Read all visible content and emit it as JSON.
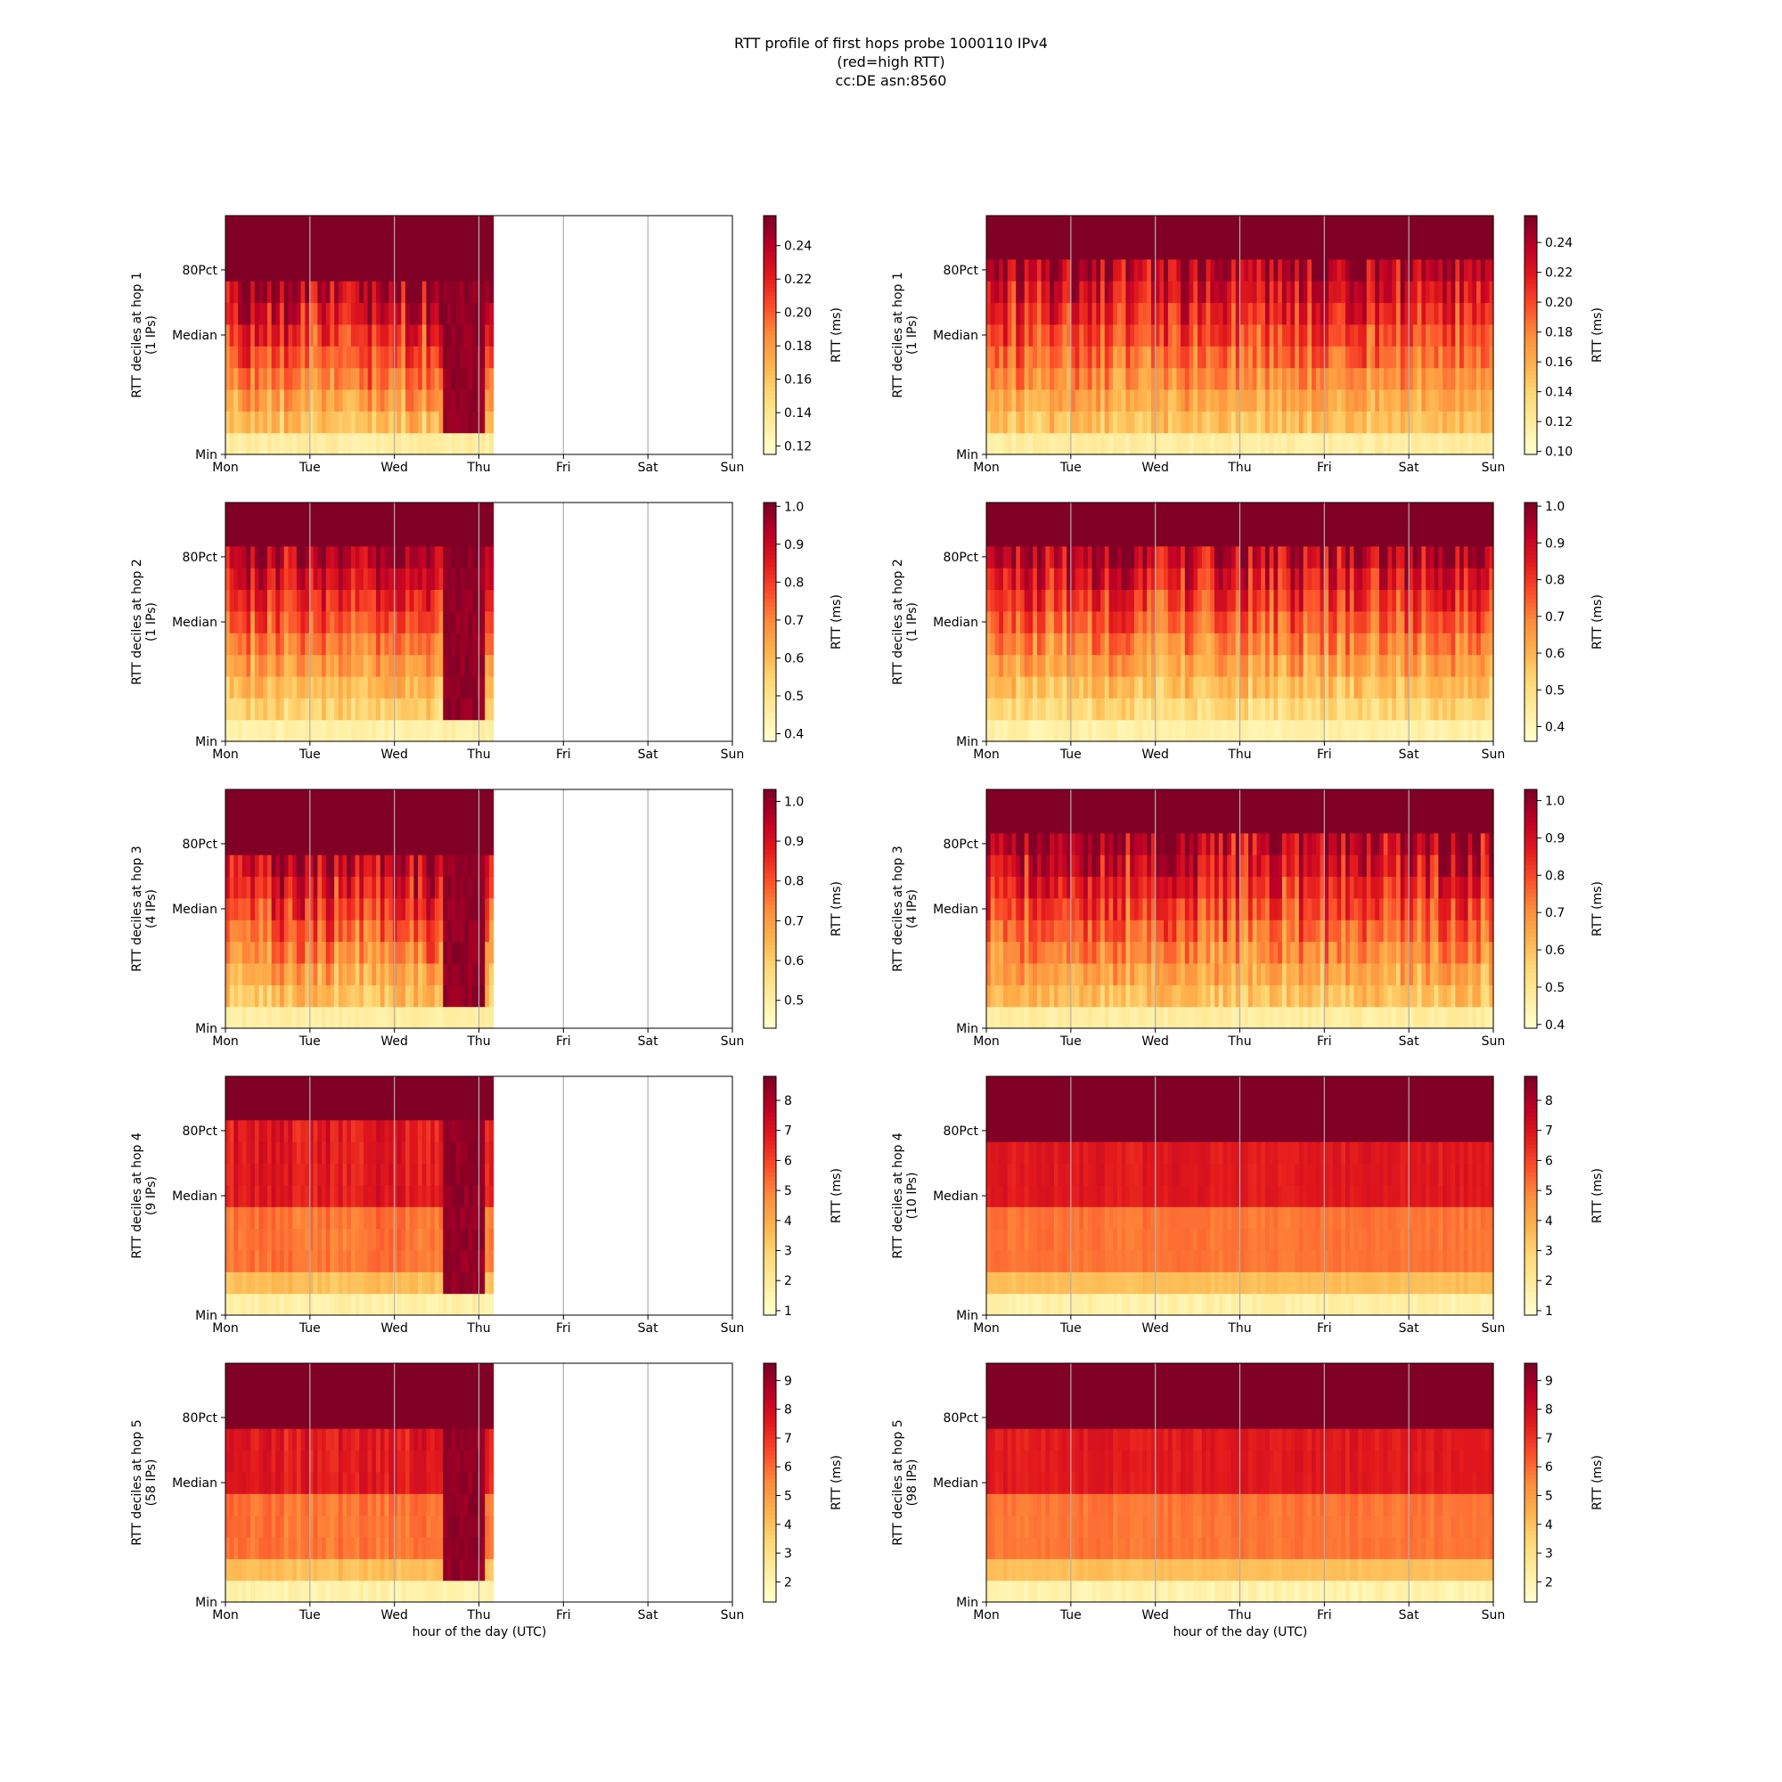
{
  "figure": {
    "title_lines": [
      "RTT profile of first hops probe 1000110 IPv4",
      "(red=high RTT)",
      "cc:DE asn:8560"
    ],
    "xlabel": "hour of the day (UTC)"
  },
  "colors": {
    "colormap": [
      "#ffffcc",
      "#ffeda0",
      "#fed976",
      "#feb24c",
      "#fd8d3c",
      "#fc4e2a",
      "#e31a1c",
      "#bd0026",
      "#800026"
    ],
    "grid": "#b0b0b0",
    "axes": "#000000"
  },
  "chart_data": [
    {
      "type": "heatmap",
      "col": 0,
      "row": 0,
      "ylabel": "RTT deciles at hop 1\n(1 IPs)",
      "xticks": [
        "Mon",
        "Tue",
        "Wed",
        "Thu",
        "Fri",
        "Sat",
        "Sun"
      ],
      "yticks": [
        "Min",
        "Median",
        "80Pct"
      ],
      "colorbar_label": "RTT (ms)",
      "colorbar_ticks": [
        "0.12",
        "0.14",
        "0.16",
        "0.18",
        "0.20",
        "0.22",
        "0.24"
      ],
      "clim": [
        0.115,
        0.258
      ],
      "data_days": 3.17,
      "thu_dip": true,
      "base_level": 0.45,
      "bottom_level": 0.08,
      "top_band_deciles": 3.2,
      "noise": 0.35,
      "seed": 11
    },
    {
      "type": "heatmap",
      "col": 1,
      "row": 0,
      "ylabel": "RTT deciles at hop 1\n(1 IPs)",
      "xticks": [
        "Mon",
        "Tue",
        "Wed",
        "Thu",
        "Fri",
        "Sat",
        "Sun"
      ],
      "yticks": [
        "Min",
        "Median",
        "80Pct"
      ],
      "colorbar_label": "RTT (ms)",
      "colorbar_ticks": [
        "0.10",
        "0.12",
        "0.14",
        "0.16",
        "0.18",
        "0.20",
        "0.22",
        "0.24"
      ],
      "clim": [
        0.098,
        0.258
      ],
      "data_days": 6.0,
      "thu_dip": false,
      "base_level": 0.45,
      "bottom_level": 0.08,
      "top_band_deciles": 2.0,
      "noise": 0.3,
      "seed": 12
    },
    {
      "type": "heatmap",
      "col": 0,
      "row": 1,
      "ylabel": "RTT deciles at hop 2\n(1 IPs)",
      "xticks": [
        "Mon",
        "Tue",
        "Wed",
        "Thu",
        "Fri",
        "Sat",
        "Sun"
      ],
      "yticks": [
        "Min",
        "Median",
        "80Pct"
      ],
      "colorbar_label": "RTT (ms)",
      "colorbar_ticks": [
        "0.4",
        "0.5",
        "0.6",
        "0.7",
        "0.8",
        "0.9",
        "1.0"
      ],
      "clim": [
        0.38,
        1.01
      ],
      "data_days": 3.17,
      "thu_dip": true,
      "base_level": 0.3,
      "bottom_level": 0.06,
      "top_band_deciles": 2.0,
      "noise": 0.3,
      "seed": 21
    },
    {
      "type": "heatmap",
      "col": 1,
      "row": 1,
      "ylabel": "RTT deciles at hop 2\n(1 IPs)",
      "xticks": [
        "Mon",
        "Tue",
        "Wed",
        "Thu",
        "Fri",
        "Sat",
        "Sun"
      ],
      "yticks": [
        "Min",
        "Median",
        "80Pct"
      ],
      "colorbar_label": "RTT (ms)",
      "colorbar_ticks": [
        "0.4",
        "0.5",
        "0.6",
        "0.7",
        "0.8",
        "0.9",
        "1.0"
      ],
      "clim": [
        0.36,
        1.01
      ],
      "data_days": 6.0,
      "thu_dip": false,
      "base_level": 0.28,
      "bottom_level": 0.06,
      "top_band_deciles": 2.0,
      "noise": 0.3,
      "seed": 22
    },
    {
      "type": "heatmap",
      "col": 0,
      "row": 2,
      "ylabel": "RTT deciles at hop 3\n(4 IPs)",
      "xticks": [
        "Mon",
        "Tue",
        "Wed",
        "Thu",
        "Fri",
        "Sat",
        "Sun"
      ],
      "yticks": [
        "Min",
        "Median",
        "80Pct"
      ],
      "colorbar_label": "RTT (ms)",
      "colorbar_ticks": [
        "0.5",
        "0.6",
        "0.7",
        "0.8",
        "0.9",
        "1.0"
      ],
      "clim": [
        0.43,
        1.03
      ],
      "data_days": 3.17,
      "thu_dip": true,
      "base_level": 0.45,
      "bottom_level": 0.08,
      "top_band_deciles": 3.0,
      "noise": 0.35,
      "seed": 31
    },
    {
      "type": "heatmap",
      "col": 1,
      "row": 2,
      "ylabel": "RTT deciles at hop 3\n(4 IPs)",
      "xticks": [
        "Mon",
        "Tue",
        "Wed",
        "Thu",
        "Fri",
        "Sat",
        "Sun"
      ],
      "yticks": [
        "Min",
        "Median",
        "80Pct"
      ],
      "colorbar_label": "RTT (ms)",
      "colorbar_ticks": [
        "0.4",
        "0.5",
        "0.6",
        "0.7",
        "0.8",
        "0.9",
        "1.0"
      ],
      "clim": [
        0.39,
        1.03
      ],
      "data_days": 6.0,
      "thu_dip": false,
      "base_level": 0.45,
      "bottom_level": 0.08,
      "top_band_deciles": 2.0,
      "noise": 0.35,
      "seed": 32
    },
    {
      "type": "heatmap",
      "col": 0,
      "row": 3,
      "ylabel": "RTT deciles at hop 4\n(9 IPs)",
      "xticks": [
        "Mon",
        "Tue",
        "Wed",
        "Thu",
        "Fri",
        "Sat",
        "Sun"
      ],
      "yticks": [
        "Min",
        "Median",
        "80Pct"
      ],
      "colorbar_label": "RTT (ms)",
      "colorbar_ticks": [
        "1",
        "2",
        "3",
        "4",
        "5",
        "6",
        "7",
        "8"
      ],
      "clim": [
        0.85,
        8.8
      ],
      "data_days": 3.17,
      "thu_dip": true,
      "base_level": 0.4,
      "bottom_level": 0.06,
      "top_band_deciles": 2.0,
      "noise": 0.12,
      "seed": 41,
      "step_levels": true
    },
    {
      "type": "heatmap",
      "col": 1,
      "row": 3,
      "ylabel": "RTT deciles at hop 4\n(10 IPs)",
      "xticks": [
        "Mon",
        "Tue",
        "Wed",
        "Thu",
        "Fri",
        "Sat",
        "Sun"
      ],
      "yticks": [
        "Min",
        "Median",
        "80Pct"
      ],
      "colorbar_label": "RTT (ms)",
      "colorbar_ticks": [
        "1",
        "2",
        "3",
        "4",
        "5",
        "6",
        "7",
        "8"
      ],
      "clim": [
        0.85,
        8.8
      ],
      "data_days": 6.0,
      "thu_dip": false,
      "base_level": 0.4,
      "bottom_level": 0.06,
      "top_band_deciles": 3.0,
      "noise": 0.06,
      "seed": 42,
      "step_levels": true
    },
    {
      "type": "heatmap",
      "col": 0,
      "row": 4,
      "ylabel": "RTT deciles at hop 5\n(58 IPs)",
      "xticks": [
        "Mon",
        "Tue",
        "Wed",
        "Thu",
        "Fri",
        "Sat",
        "Sun"
      ],
      "yticks": [
        "Min",
        "Median",
        "80Pct"
      ],
      "colorbar_label": "RTT (ms)",
      "colorbar_ticks": [
        "2",
        "3",
        "4",
        "5",
        "6",
        "7",
        "8",
        "9"
      ],
      "clim": [
        1.3,
        9.6
      ],
      "data_days": 3.17,
      "thu_dip": true,
      "base_level": 0.38,
      "bottom_level": 0.05,
      "top_band_deciles": 3.0,
      "noise": 0.12,
      "seed": 51,
      "step_levels": true
    },
    {
      "type": "heatmap",
      "col": 1,
      "row": 4,
      "ylabel": "RTT deciles at hop 5\n(98 IPs)",
      "xticks": [
        "Mon",
        "Tue",
        "Wed",
        "Thu",
        "Fri",
        "Sat",
        "Sun"
      ],
      "yticks": [
        "Min",
        "Median",
        "80Pct"
      ],
      "colorbar_label": "RTT (ms)",
      "colorbar_ticks": [
        "2",
        "3",
        "4",
        "5",
        "6",
        "7",
        "8",
        "9"
      ],
      "clim": [
        1.3,
        9.6
      ],
      "data_days": 6.0,
      "thu_dip": false,
      "base_level": 0.42,
      "bottom_level": 0.05,
      "top_band_deciles": 3.0,
      "noise": 0.06,
      "seed": 52,
      "step_levels": true
    }
  ]
}
